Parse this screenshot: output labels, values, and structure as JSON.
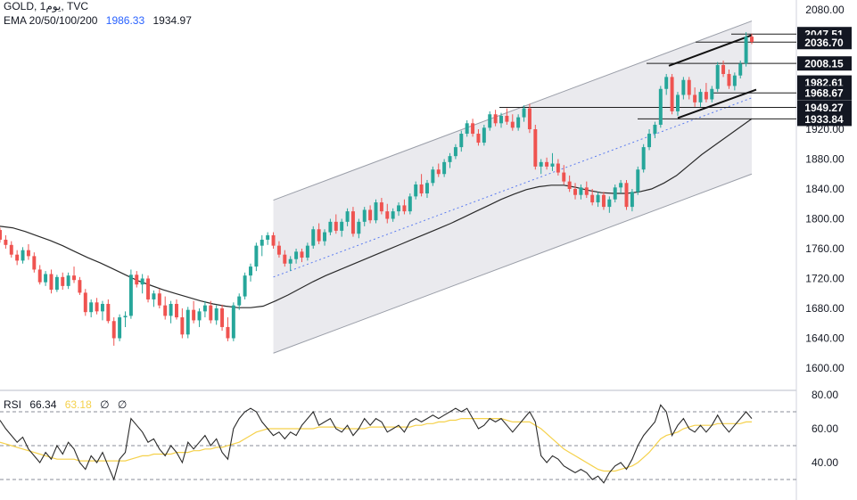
{
  "legend": {
    "symbol": "GOLD, 1يوم, TVC",
    "ema_label": "EMA 20/50/100/200",
    "ema_value_1": "1986.33",
    "ema_value_2": "1934.97"
  },
  "rsi_legend": {
    "label": "RSI",
    "value": "66.34",
    "ma_value": "63.18",
    "extra_1": "∅",
    "extra_2": "∅"
  },
  "price_axis_ticks": [
    "2080.00",
    "1920.00",
    "1880.00",
    "1840.00",
    "1800.00",
    "1760.00",
    "1720.00",
    "1680.00",
    "1640.00",
    "1600.00"
  ],
  "price_labels": [
    "2047.51",
    "2036.70",
    "2008.15",
    "1982.61",
    "1968.67",
    "1949.27",
    "1933.84"
  ],
  "rsi_axis_ticks": [
    "80.00",
    "60.00",
    "40.00"
  ],
  "colors": {
    "up": "#26a69a",
    "down": "#ef5350",
    "channel_fill": "#e8e8ec",
    "ema": "#2a2a2a",
    "rsi": "#2a2a2a",
    "rsi_ma": "#f5d14b"
  },
  "chart_data": {
    "type": "candlestick",
    "ylim": [
      1580,
      2090
    ],
    "channel": {
      "lower": [
        1620,
        1860
      ],
      "upper": [
        1825,
        2065
      ],
      "mid": [
        1722,
        1962
      ]
    },
    "candles": [
      [
        1785,
        1788,
        1768,
        1772
      ],
      [
        1772,
        1778,
        1760,
        1765
      ],
      [
        1765,
        1770,
        1748,
        1752
      ],
      [
        1752,
        1758,
        1738,
        1744
      ],
      [
        1744,
        1762,
        1740,
        1758
      ],
      [
        1758,
        1766,
        1745,
        1750
      ],
      [
        1750,
        1755,
        1728,
        1732
      ],
      [
        1732,
        1738,
        1712,
        1715
      ],
      [
        1715,
        1730,
        1710,
        1726
      ],
      [
        1726,
        1732,
        1700,
        1705
      ],
      [
        1705,
        1725,
        1702,
        1722
      ],
      [
        1722,
        1728,
        1705,
        1710
      ],
      [
        1710,
        1728,
        1706,
        1724
      ],
      [
        1724,
        1736,
        1714,
        1718
      ],
      [
        1718,
        1722,
        1698,
        1701
      ],
      [
        1701,
        1706,
        1670,
        1675
      ],
      [
        1675,
        1692,
        1668,
        1688
      ],
      [
        1688,
        1694,
        1672,
        1676
      ],
      [
        1676,
        1690,
        1664,
        1686
      ],
      [
        1686,
        1692,
        1660,
        1663
      ],
      [
        1663,
        1668,
        1630,
        1640
      ],
      [
        1640,
        1672,
        1636,
        1668
      ],
      [
        1668,
        1676,
        1655,
        1670
      ],
      [
        1670,
        1732,
        1666,
        1725
      ],
      [
        1725,
        1730,
        1708,
        1712
      ],
      [
        1712,
        1726,
        1700,
        1720
      ],
      [
        1720,
        1724,
        1688,
        1692
      ],
      [
        1692,
        1704,
        1682,
        1700
      ],
      [
        1700,
        1706,
        1680,
        1684
      ],
      [
        1684,
        1696,
        1665,
        1670
      ],
      [
        1670,
        1690,
        1660,
        1686
      ],
      [
        1686,
        1692,
        1665,
        1668
      ],
      [
        1668,
        1680,
        1640,
        1645
      ],
      [
        1645,
        1682,
        1640,
        1678
      ],
      [
        1678,
        1690,
        1660,
        1664
      ],
      [
        1664,
        1680,
        1655,
        1676
      ],
      [
        1676,
        1690,
        1668,
        1684
      ],
      [
        1684,
        1690,
        1660,
        1664
      ],
      [
        1664,
        1684,
        1658,
        1680
      ],
      [
        1680,
        1685,
        1650,
        1655
      ],
      [
        1655,
        1668,
        1636,
        1640
      ],
      [
        1640,
        1688,
        1636,
        1684
      ],
      [
        1684,
        1700,
        1678,
        1696
      ],
      [
        1696,
        1728,
        1692,
        1724
      ],
      [
        1724,
        1740,
        1716,
        1736
      ],
      [
        1736,
        1768,
        1730,
        1764
      ],
      [
        1764,
        1778,
        1750,
        1772
      ],
      [
        1772,
        1782,
        1765,
        1778
      ],
      [
        1778,
        1782,
        1760,
        1764
      ],
      [
        1764,
        1770,
        1748,
        1752
      ],
      [
        1752,
        1758,
        1736,
        1740
      ],
      [
        1740,
        1750,
        1730,
        1746
      ],
      [
        1746,
        1760,
        1740,
        1756
      ],
      [
        1756,
        1760,
        1742,
        1748
      ],
      [
        1748,
        1768,
        1744,
        1764
      ],
      [
        1764,
        1790,
        1760,
        1786
      ],
      [
        1786,
        1794,
        1766,
        1770
      ],
      [
        1770,
        1786,
        1764,
        1782
      ],
      [
        1782,
        1800,
        1778,
        1796
      ],
      [
        1796,
        1806,
        1780,
        1784
      ],
      [
        1784,
        1800,
        1776,
        1796
      ],
      [
        1796,
        1814,
        1790,
        1810
      ],
      [
        1810,
        1816,
        1776,
        1780
      ],
      [
        1780,
        1800,
        1774,
        1796
      ],
      [
        1796,
        1816,
        1790,
        1812
      ],
      [
        1812,
        1818,
        1794,
        1798
      ],
      [
        1798,
        1826,
        1794,
        1822
      ],
      [
        1822,
        1828,
        1806,
        1810
      ],
      [
        1810,
        1820,
        1794,
        1800
      ],
      [
        1800,
        1814,
        1796,
        1810
      ],
      [
        1810,
        1822,
        1804,
        1818
      ],
      [
        1818,
        1826,
        1806,
        1810
      ],
      [
        1810,
        1834,
        1806,
        1830
      ],
      [
        1830,
        1850,
        1826,
        1846
      ],
      [
        1846,
        1860,
        1830,
        1834
      ],
      [
        1834,
        1852,
        1828,
        1848
      ],
      [
        1848,
        1870,
        1844,
        1866
      ],
      [
        1866,
        1874,
        1856,
        1860
      ],
      [
        1860,
        1880,
        1856,
        1876
      ],
      [
        1876,
        1888,
        1868,
        1884
      ],
      [
        1884,
        1900,
        1880,
        1896
      ],
      [
        1896,
        1918,
        1890,
        1914
      ],
      [
        1914,
        1932,
        1910,
        1928
      ],
      [
        1928,
        1934,
        1910,
        1914
      ],
      [
        1914,
        1920,
        1898,
        1902
      ],
      [
        1902,
        1926,
        1898,
        1922
      ],
      [
        1922,
        1944,
        1918,
        1940
      ],
      [
        1940,
        1946,
        1924,
        1928
      ],
      [
        1928,
        1942,
        1922,
        1938
      ],
      [
        1938,
        1948,
        1926,
        1930
      ],
      [
        1930,
        1940,
        1918,
        1922
      ],
      [
        1922,
        1940,
        1918,
        1936
      ],
      [
        1936,
        1952,
        1930,
        1948
      ],
      [
        1948,
        1954,
        1915,
        1920
      ],
      [
        1920,
        1926,
        1866,
        1870
      ],
      [
        1870,
        1880,
        1860,
        1876
      ],
      [
        1876,
        1882,
        1866,
        1870
      ],
      [
        1870,
        1888,
        1864,
        1874
      ],
      [
        1874,
        1880,
        1858,
        1862
      ],
      [
        1862,
        1872,
        1846,
        1850
      ],
      [
        1850,
        1858,
        1836,
        1840
      ],
      [
        1840,
        1848,
        1826,
        1832
      ],
      [
        1832,
        1846,
        1826,
        1842
      ],
      [
        1842,
        1850,
        1828,
        1832
      ],
      [
        1832,
        1840,
        1818,
        1822
      ],
      [
        1822,
        1836,
        1816,
        1832
      ],
      [
        1832,
        1836,
        1812,
        1816
      ],
      [
        1816,
        1830,
        1808,
        1826
      ],
      [
        1826,
        1846,
        1822,
        1842
      ],
      [
        1842,
        1852,
        1834,
        1848
      ],
      [
        1848,
        1852,
        1812,
        1816
      ],
      [
        1816,
        1840,
        1810,
        1836
      ],
      [
        1836,
        1870,
        1832,
        1866
      ],
      [
        1866,
        1900,
        1862,
        1896
      ],
      [
        1896,
        1920,
        1892,
        1914
      ],
      [
        1914,
        1930,
        1908,
        1926
      ],
      [
        1926,
        1978,
        1922,
        1974
      ],
      [
        1974,
        1994,
        1966,
        1990
      ],
      [
        1990,
        1994,
        1940,
        1944
      ],
      [
        1944,
        1970,
        1938,
        1966
      ],
      [
        1966,
        1990,
        1960,
        1986
      ],
      [
        1986,
        1990,
        1960,
        1966
      ],
      [
        1966,
        1976,
        1950,
        1956
      ],
      [
        1956,
        1974,
        1950,
        1970
      ],
      [
        1970,
        1982,
        1956,
        1960
      ],
      [
        1960,
        1978,
        1956,
        1974
      ],
      [
        1974,
        2010,
        1970,
        2006
      ],
      [
        2006,
        2012,
        1990,
        1994
      ],
      [
        1994,
        2000,
        1974,
        1978
      ],
      [
        1978,
        1996,
        1972,
        1992
      ],
      [
        1992,
        2012,
        1988,
        2008
      ],
      [
        2008,
        2050,
        2004,
        2044
      ],
      [
        2044,
        2048,
        2034,
        2037
      ]
    ],
    "ema_slow": [
      1790,
      1788,
      1783,
      1777,
      1771,
      1764,
      1756,
      1748,
      1741,
      1733,
      1725,
      1717,
      1711,
      1705,
      1700,
      1695,
      1690,
      1686,
      1683,
      1681,
      1681,
      1683,
      1690,
      1698,
      1707,
      1716,
      1724,
      1731,
      1738,
      1745,
      1752,
      1759,
      1766,
      1773,
      1780,
      1787,
      1794,
      1802,
      1810,
      1818,
      1826,
      1833,
      1839,
      1843,
      1845,
      1845,
      1842,
      1838,
      1835,
      1834,
      1834,
      1836,
      1840,
      1848,
      1858,
      1872,
      1886,
      1898,
      1910,
      1922,
      1934
    ],
    "rsi": [
      65,
      60,
      56,
      52,
      55,
      48,
      44,
      40,
      46,
      42,
      50,
      45,
      52,
      48,
      40,
      36,
      44,
      40,
      46,
      38,
      30,
      42,
      46,
      66,
      62,
      58,
      52,
      54,
      48,
      44,
      50,
      46,
      40,
      52,
      48,
      52,
      56,
      50,
      54,
      46,
      42,
      60,
      66,
      70,
      72,
      70,
      64,
      60,
      56,
      58,
      54,
      58,
      56,
      62,
      66,
      70,
      62,
      64,
      66,
      60,
      58,
      62,
      56,
      60,
      66,
      62,
      66,
      64,
      58,
      60,
      62,
      58,
      64,
      66,
      64,
      66,
      68,
      66,
      68,
      70,
      72,
      70,
      72,
      66,
      60,
      62,
      66,
      64,
      66,
      62,
      58,
      62,
      66,
      70,
      64,
      44,
      40,
      44,
      42,
      38,
      36,
      34,
      36,
      34,
      30,
      32,
      28,
      34,
      38,
      40,
      36,
      42,
      50,
      56,
      60,
      64,
      74,
      70,
      56,
      62,
      66,
      60,
      58,
      62,
      58,
      62,
      68,
      62,
      58,
      62,
      66,
      70,
      66
    ],
    "rsi_ma": [
      52,
      51,
      50,
      49,
      48,
      47,
      46,
      45,
      44,
      43,
      42,
      42,
      42,
      42,
      41,
      41,
      41,
      41,
      41,
      41,
      41,
      41,
      41,
      42,
      43,
      44,
      44,
      45,
      45,
      45,
      45,
      46,
      46,
      46,
      47,
      47,
      48,
      48,
      49,
      49,
      50,
      51,
      52,
      54,
      56,
      58,
      59,
      60,
      60,
      60,
      60,
      60,
      60,
      60,
      60,
      60,
      61,
      61,
      61,
      61,
      60,
      60,
      60,
      60,
      60,
      61,
      61,
      61,
      61,
      61,
      61,
      61,
      61,
      62,
      62,
      63,
      63,
      64,
      64,
      65,
      65,
      66,
      66,
      66,
      66,
      66,
      66,
      66,
      66,
      65,
      64,
      64,
      64,
      64,
      62,
      60,
      57,
      54,
      51,
      48,
      46,
      44,
      42,
      40,
      38,
      36,
      35,
      35,
      35,
      36,
      37,
      38,
      40,
      43,
      46,
      50,
      54,
      56,
      57,
      58,
      60,
      61,
      62,
      62,
      62,
      62,
      63,
      63,
      63,
      63,
      63,
      64,
      64
    ],
    "rsi_levels": [
      70,
      50,
      30
    ],
    "rsi_ylim": [
      20,
      85
    ]
  }
}
